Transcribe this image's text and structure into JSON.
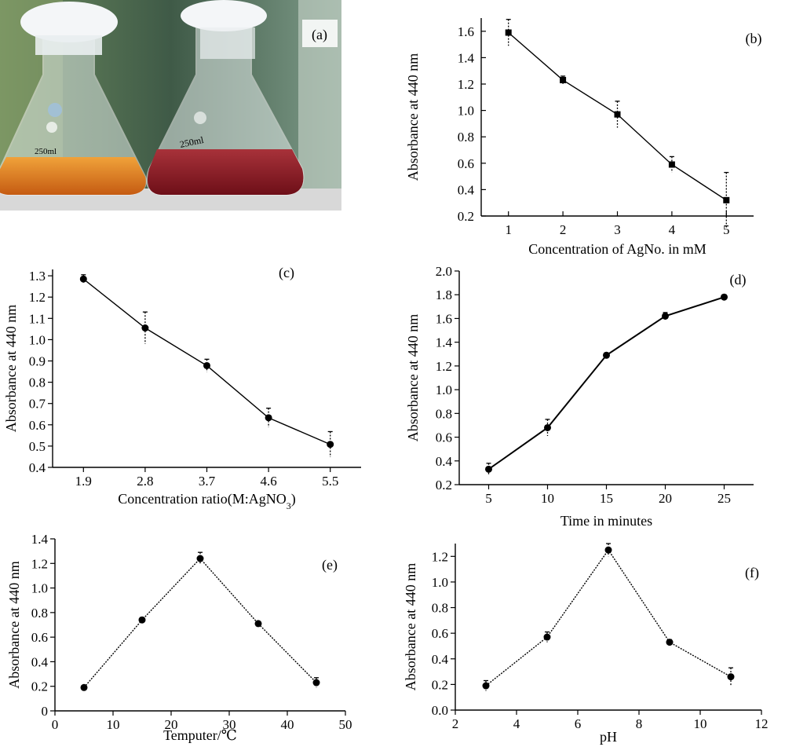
{
  "photo": {
    "panel_label": "(a)",
    "flask_left_mark": "250ml",
    "flask_right_mark": "250ml",
    "colors": {
      "left_liquid": "#d9771f",
      "right_liquid": "#8e1a22",
      "background": "#5a7a55"
    }
  },
  "chart_data": [
    {
      "id": "b",
      "type": "line",
      "panel_label": "(b)",
      "xlabel": "Concentration of AgNo. in mM",
      "ylabel": "Absorbance at 440 nm",
      "x": [
        1,
        2,
        3,
        4,
        5
      ],
      "y": [
        1.59,
        1.23,
        0.97,
        0.59,
        0.32
      ],
      "error": [
        0.1,
        0.03,
        0.1,
        0.06,
        0.21
      ],
      "xlim": [
        0.5,
        5.5
      ],
      "ylim": [
        0.2,
        1.7
      ],
      "xticks": [
        "1",
        "2",
        "3",
        "4",
        "5"
      ],
      "yticks": [
        "0.2",
        "0.4",
        "0.6",
        "0.8",
        "1.0",
        "1.2",
        "1.4",
        "1.6"
      ],
      "ytick_values": [
        0.2,
        0.4,
        0.6,
        0.8,
        1.0,
        1.2,
        1.4,
        1.6
      ],
      "grid": false
    },
    {
      "id": "c",
      "type": "line",
      "panel_label": "(c)",
      "xlabel": "Concentration ratio(M:AgNO3)",
      "ylabel": "Absorbance at 440 nm",
      "x": [
        1.9,
        2.8,
        3.7,
        4.6,
        5.5
      ],
      "y": [
        1.285,
        1.055,
        0.878,
        0.633,
        0.508
      ],
      "error": [
        0.02,
        0.075,
        0.03,
        0.045,
        0.06
      ],
      "xlim": [
        1.45,
        5.95
      ],
      "ylim": [
        0.4,
        1.33
      ],
      "xticks": [
        "1.9",
        "2.8",
        "3.7",
        "4.6",
        "5.5"
      ],
      "yticks": [
        "0.4",
        "0.5",
        "0.6",
        "0.7",
        "0.8",
        "0.9",
        "1.0",
        "1.1",
        "1.2",
        "1.3"
      ],
      "ytick_values": [
        0.4,
        0.5,
        0.6,
        0.7,
        0.8,
        0.9,
        1.0,
        1.1,
        1.2,
        1.3
      ],
      "grid": false
    },
    {
      "id": "d",
      "type": "line",
      "panel_label": "(d)",
      "xlabel": "Time in minutes",
      "ylabel": "Absorbance at 440 nm",
      "x": [
        5,
        10,
        15,
        20,
        25
      ],
      "y": [
        0.33,
        0.68,
        1.29,
        1.62,
        1.78
      ],
      "error": [
        0.05,
        0.07,
        0.02,
        0.03,
        0.02
      ],
      "xlim": [
        2.5,
        27.5
      ],
      "ylim": [
        0.2,
        2.0
      ],
      "xticks": [
        "5",
        "10",
        "15",
        "20",
        "25"
      ],
      "yticks": [
        "0.2",
        "0.4",
        "0.6",
        "0.8",
        "1.0",
        "1.2",
        "1.4",
        "1.6",
        "1.8",
        "2.0"
      ],
      "ytick_values": [
        0.2,
        0.4,
        0.6,
        0.8,
        1.0,
        1.2,
        1.4,
        1.6,
        1.8,
        2.0
      ],
      "grid": false
    },
    {
      "id": "e",
      "type": "line",
      "panel_label": "(e)",
      "xlabel": "Temputer/℃",
      "ylabel": "Absorbance at 440 nm",
      "x": [
        5,
        15,
        25,
        35,
        45
      ],
      "y": [
        0.19,
        0.74,
        1.24,
        0.71,
        0.23
      ],
      "error": [
        0.01,
        0.02,
        0.05,
        0.01,
        0.04
      ],
      "xlim": [
        0,
        50
      ],
      "ylim": [
        0,
        1.4
      ],
      "xticks": [
        "0",
        "10",
        "20",
        "30",
        "40",
        "50"
      ],
      "xtick_values": [
        0,
        10,
        20,
        30,
        40,
        50
      ],
      "yticks": [
        "0",
        "0.2",
        "0.4",
        "0.6",
        "0.8",
        "1.0",
        "1.2",
        "1.4"
      ],
      "ytick_values": [
        0,
        0.2,
        0.4,
        0.6,
        0.8,
        1.0,
        1.2,
        1.4
      ],
      "grid": false
    },
    {
      "id": "f",
      "type": "line",
      "panel_label": "(f)",
      "xlabel": "pH",
      "ylabel": "Absorbance at 440 nm",
      "x": [
        3,
        5,
        7,
        9,
        11
      ],
      "y": [
        0.19,
        0.57,
        1.25,
        0.53,
        0.26
      ],
      "error": [
        0.04,
        0.04,
        0.05,
        0.02,
        0.07
      ],
      "xlim": [
        2,
        12
      ],
      "ylim": [
        0,
        1.3
      ],
      "xticks": [
        "2",
        "4",
        "6",
        "8",
        "10",
        "12"
      ],
      "xtick_values": [
        2,
        4,
        6,
        8,
        10,
        12
      ],
      "yticks": [
        "0.0",
        "0.2",
        "0.4",
        "0.6",
        "0.8",
        "1.0",
        "1.2"
      ],
      "ytick_values": [
        0,
        0.2,
        0.4,
        0.6,
        0.8,
        1.0,
        1.2
      ],
      "grid": false
    }
  ]
}
